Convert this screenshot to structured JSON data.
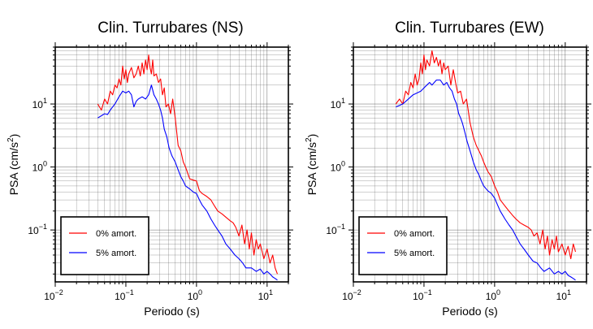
{
  "chart_data": [
    {
      "type": "line",
      "title": "Clin. Turrubares (NS)",
      "xlabel": "Periodo (s)",
      "ylabel": {
        "base": "PSA (cm/s",
        "sup": "2",
        "close": ")"
      },
      "xscale": "log",
      "yscale": "log",
      "xlim": [
        0.01,
        20
      ],
      "ylim": [
        0.015,
        80
      ],
      "xticks": [
        {
          "value": 0.01,
          "base": "10",
          "exp": "−2"
        },
        {
          "value": 0.1,
          "base": "10",
          "exp": "−1"
        },
        {
          "value": 1,
          "base": "10",
          "exp": "0"
        },
        {
          "value": 10,
          "base": "10",
          "exp": "1"
        }
      ],
      "yticks": [
        {
          "value": 0.1,
          "base": "10",
          "exp": "−1"
        },
        {
          "value": 1,
          "base": "10",
          "exp": "0"
        },
        {
          "value": 10,
          "base": "10",
          "exp": "1"
        }
      ],
      "grid": true,
      "legend": "bottom-left",
      "series": [
        {
          "name": "0% amort.",
          "color": "#ff0000",
          "x": [
            0.04,
            0.045,
            0.05,
            0.055,
            0.06,
            0.065,
            0.07,
            0.075,
            0.08,
            0.085,
            0.09,
            0.095,
            0.1,
            0.105,
            0.11,
            0.12,
            0.13,
            0.14,
            0.15,
            0.16,
            0.17,
            0.18,
            0.19,
            0.2,
            0.21,
            0.22,
            0.23,
            0.24,
            0.25,
            0.27,
            0.29,
            0.31,
            0.33,
            0.35,
            0.37,
            0.4,
            0.43,
            0.46,
            0.5,
            0.55,
            0.6,
            0.65,
            0.7,
            0.75,
            0.8,
            0.9,
            1.0,
            1.1,
            1.2,
            1.4,
            1.6,
            1.8,
            2.0,
            2.3,
            2.6,
            3.0,
            3.3,
            3.6,
            4.0,
            4.4,
            4.8,
            5.2,
            5.6,
            6.0,
            6.5,
            7.0,
            7.5,
            8.0,
            9.0,
            10.0,
            11.0,
            12.0,
            13.0,
            14.0
          ],
          "y": [
            10,
            8,
            12,
            10,
            16,
            14,
            20,
            18,
            25,
            20,
            40,
            25,
            35,
            22,
            30,
            38,
            26,
            30,
            40,
            28,
            45,
            30,
            50,
            35,
            60,
            38,
            30,
            50,
            28,
            30,
            22,
            25,
            14,
            18,
            9,
            10,
            7,
            12,
            6,
            2.2,
            1.8,
            1.2,
            1.0,
            0.8,
            0.65,
            0.62,
            0.6,
            0.42,
            0.38,
            0.34,
            0.3,
            0.24,
            0.2,
            0.18,
            0.16,
            0.14,
            0.13,
            0.11,
            0.08,
            0.12,
            0.06,
            0.1,
            0.05,
            0.09,
            0.04,
            0.07,
            0.05,
            0.06,
            0.035,
            0.05,
            0.03,
            0.04,
            0.025,
            0.02
          ]
        },
        {
          "name": "5% amort.",
          "color": "#0000ff",
          "x": [
            0.04,
            0.045,
            0.05,
            0.055,
            0.06,
            0.065,
            0.07,
            0.08,
            0.09,
            0.1,
            0.11,
            0.12,
            0.13,
            0.14,
            0.15,
            0.17,
            0.19,
            0.21,
            0.23,
            0.25,
            0.27,
            0.29,
            0.31,
            0.33,
            0.35,
            0.38,
            0.41,
            0.45,
            0.5,
            0.55,
            0.6,
            0.65,
            0.7,
            0.8,
            0.9,
            1.0,
            1.1,
            1.2,
            1.4,
            1.6,
            1.8,
            2.0,
            2.3,
            2.6,
            3.0,
            3.5,
            4.0,
            4.5,
            5.0,
            6.0,
            7.0,
            8.0,
            9.0,
            10.0,
            11.0,
            12.0,
            13.0,
            14.0
          ],
          "y": [
            6,
            6.5,
            7,
            6.8,
            8,
            9,
            10,
            13,
            16,
            15,
            16,
            14,
            9,
            11,
            12,
            13,
            12,
            14,
            20,
            14,
            12,
            10,
            8,
            6,
            4,
            3,
            2,
            1.5,
            1.2,
            0.9,
            0.7,
            0.6,
            0.5,
            0.45,
            0.4,
            0.38,
            0.3,
            0.25,
            0.2,
            0.15,
            0.12,
            0.1,
            0.08,
            0.06,
            0.05,
            0.04,
            0.035,
            0.03,
            0.025,
            0.025,
            0.022,
            0.024,
            0.02,
            0.022,
            0.02,
            0.018,
            0.017,
            0.016
          ]
        }
      ]
    },
    {
      "type": "line",
      "title": "Clin. Turrubares (EW)",
      "xlabel": "Periodo (s)",
      "ylabel": {
        "base": "PSA (cm/s",
        "sup": "2",
        "close": ")"
      },
      "xscale": "log",
      "yscale": "log",
      "xlim": [
        0.01,
        20
      ],
      "ylim": [
        0.015,
        80
      ],
      "xticks": [
        {
          "value": 0.01,
          "base": "10",
          "exp": "−2"
        },
        {
          "value": 0.1,
          "base": "10",
          "exp": "−1"
        },
        {
          "value": 1,
          "base": "10",
          "exp": "0"
        },
        {
          "value": 10,
          "base": "10",
          "exp": "1"
        }
      ],
      "yticks": [
        {
          "value": 0.1,
          "base": "10",
          "exp": "−1"
        },
        {
          "value": 1,
          "base": "10",
          "exp": "0"
        },
        {
          "value": 10,
          "base": "10",
          "exp": "1"
        }
      ],
      "grid": true,
      "legend": "bottom-left",
      "series": [
        {
          "name": "0% amort.",
          "color": "#ff0000",
          "x": [
            0.04,
            0.045,
            0.05,
            0.055,
            0.06,
            0.065,
            0.07,
            0.075,
            0.08,
            0.085,
            0.09,
            0.095,
            0.1,
            0.105,
            0.11,
            0.12,
            0.13,
            0.14,
            0.15,
            0.16,
            0.17,
            0.18,
            0.19,
            0.2,
            0.22,
            0.24,
            0.26,
            0.28,
            0.3,
            0.33,
            0.36,
            0.4,
            0.45,
            0.5,
            0.55,
            0.6,
            0.65,
            0.7,
            0.75,
            0.8,
            0.9,
            1.0,
            1.1,
            1.2,
            1.4,
            1.6,
            1.8,
            2.0,
            2.3,
            2.6,
            3.0,
            3.3,
            3.6,
            4.0,
            4.4,
            4.8,
            5.2,
            5.6,
            6.0,
            6.5,
            7.0,
            7.5,
            8.0,
            9.0,
            10.0,
            11.0,
            12.0,
            13.0,
            14.0
          ],
          "y": [
            10,
            12,
            10,
            16,
            14,
            22,
            18,
            30,
            20,
            25,
            45,
            30,
            60,
            35,
            50,
            40,
            70,
            45,
            55,
            40,
            50,
            30,
            45,
            35,
            40,
            20,
            35,
            22,
            15,
            16,
            10,
            12,
            5,
            3,
            2.2,
            1.8,
            1.5,
            1.2,
            1.0,
            0.85,
            0.7,
            0.5,
            0.4,
            0.3,
            0.24,
            0.2,
            0.17,
            0.15,
            0.13,
            0.12,
            0.11,
            0.1,
            0.08,
            0.09,
            0.06,
            0.1,
            0.05,
            0.08,
            0.04,
            0.07,
            0.05,
            0.08,
            0.045,
            0.06,
            0.04,
            0.055,
            0.035,
            0.06,
            0.045
          ]
        },
        {
          "name": "5% amort.",
          "color": "#0000ff",
          "x": [
            0.04,
            0.045,
            0.05,
            0.055,
            0.06,
            0.065,
            0.07,
            0.08,
            0.09,
            0.1,
            0.11,
            0.12,
            0.13,
            0.14,
            0.15,
            0.17,
            0.19,
            0.21,
            0.23,
            0.25,
            0.27,
            0.29,
            0.31,
            0.33,
            0.35,
            0.38,
            0.41,
            0.45,
            0.5,
            0.55,
            0.6,
            0.65,
            0.7,
            0.8,
            0.9,
            1.0,
            1.1,
            1.2,
            1.4,
            1.6,
            1.8,
            2.0,
            2.3,
            2.6,
            3.0,
            3.5,
            4.0,
            4.5,
            5.0,
            6.0,
            7.0,
            8.0,
            9.0,
            10.0,
            11.0,
            12.0,
            13.0,
            14.0
          ],
          "y": [
            9,
            9.5,
            10,
            11,
            12,
            13,
            14,
            15,
            16,
            18,
            20,
            22,
            20,
            22,
            24,
            24,
            20,
            22,
            18,
            16,
            12,
            10,
            7,
            6,
            5,
            3.5,
            2.5,
            1.8,
            1.2,
            0.9,
            0.75,
            0.6,
            0.5,
            0.42,
            0.38,
            0.32,
            0.25,
            0.2,
            0.15,
            0.12,
            0.1,
            0.08,
            0.06,
            0.05,
            0.04,
            0.032,
            0.03,
            0.025,
            0.022,
            0.025,
            0.02,
            0.022,
            0.02,
            0.022,
            0.019,
            0.018,
            0.017,
            0.016
          ]
        }
      ]
    }
  ]
}
